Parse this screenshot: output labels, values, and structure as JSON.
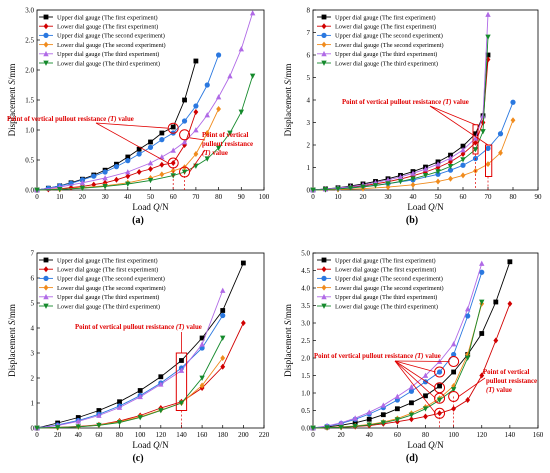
{
  "legend_labels": [
    "Upper dial gauge (The first experiment)",
    "Lower dial gauge (The first experiment)",
    "Upper dial gauge (The second experiment)",
    "Lower dial gauge (The second experiment)",
    "Upper dial gauge (The third experiment)",
    "Lower dial gauge (The third experiment)"
  ],
  "series_colors": [
    "#000000",
    "#d10000",
    "#2a78e0",
    "#f08b1d",
    "#b06ae6",
    "#158a2c"
  ],
  "series_markers": [
    "square",
    "diamond",
    "circle",
    "diamond",
    "triangle",
    "triangle-down"
  ],
  "annotation_color": "#e00000",
  "chart_data": [
    {
      "type": "line",
      "panel_label": "(a)",
      "xlabel": "Load Q/N",
      "ylabel": "Displacement S/mm",
      "xlim": [
        0,
        100
      ],
      "ylim": [
        0,
        3.0
      ],
      "xticks": [
        "0",
        "10",
        "20",
        "30",
        "40",
        "50",
        "60",
        "70",
        "80",
        "90",
        "100"
      ],
      "yticks": [
        "0.0",
        "0.5",
        "1.0",
        "1.5",
        "2.0",
        "2.5",
        "3.0"
      ],
      "annotations": [
        "Point of vertical pullout resistance (T) value",
        "Point of vertical pullout resistance (T) value"
      ],
      "series": [
        {
          "x": [
            0,
            5,
            10,
            15,
            20,
            25,
            30,
            35,
            40,
            45,
            50,
            55,
            60,
            65,
            70
          ],
          "y": [
            0,
            0.03,
            0.07,
            0.12,
            0.18,
            0.25,
            0.33,
            0.43,
            0.55,
            0.68,
            0.8,
            0.95,
            1.05,
            1.5,
            2.15
          ]
        },
        {
          "x": [
            0,
            5,
            10,
            15,
            20,
            25,
            30,
            35,
            40,
            45,
            50,
            55,
            60,
            65,
            70
          ],
          "y": [
            0,
            0.01,
            0.02,
            0.04,
            0.06,
            0.09,
            0.12,
            0.17,
            0.23,
            0.3,
            0.35,
            0.42,
            0.45,
            0.75,
            1.3
          ]
        },
        {
          "x": [
            0,
            5,
            10,
            15,
            20,
            25,
            30,
            35,
            40,
            45,
            50,
            55,
            60,
            65,
            70,
            75,
            80
          ],
          "y": [
            0,
            0.03,
            0.07,
            0.11,
            0.17,
            0.23,
            0.3,
            0.39,
            0.49,
            0.6,
            0.71,
            0.84,
            0.95,
            1.15,
            1.4,
            1.75,
            2.25
          ]
        },
        {
          "x": [
            0,
            10,
            20,
            30,
            40,
            50,
            55,
            60,
            65,
            70,
            75,
            80
          ],
          "y": [
            0,
            0.01,
            0.04,
            0.07,
            0.12,
            0.2,
            0.26,
            0.32,
            0.38,
            0.6,
            0.95,
            1.35
          ]
        },
        {
          "x": [
            0,
            10,
            20,
            30,
            40,
            50,
            55,
            60,
            65,
            70,
            75,
            80,
            85,
            90,
            95
          ],
          "y": [
            0,
            0.05,
            0.12,
            0.2,
            0.3,
            0.45,
            0.55,
            0.66,
            0.8,
            1.0,
            1.25,
            1.55,
            1.9,
            2.35,
            2.95
          ]
        },
        {
          "x": [
            0,
            10,
            20,
            30,
            40,
            50,
            60,
            65,
            70,
            75,
            80,
            85,
            90,
            95
          ],
          "y": [
            0,
            0.01,
            0.03,
            0.06,
            0.1,
            0.16,
            0.24,
            0.3,
            0.4,
            0.52,
            0.7,
            0.95,
            1.3,
            1.9
          ]
        }
      ]
    },
    {
      "type": "line",
      "panel_label": "(b)",
      "xlabel": "Load Q/N",
      "ylabel": "Displacement S/mm",
      "xlim": [
        0,
        90
      ],
      "ylim": [
        0,
        8
      ],
      "xticks": [
        "0",
        "10",
        "20",
        "30",
        "40",
        "50",
        "60",
        "70",
        "80",
        "90"
      ],
      "yticks": [
        "0",
        "1",
        "2",
        "3",
        "4",
        "5",
        "6",
        "7",
        "8"
      ],
      "annotations": [
        "Point of vertical pullout resistance (T) value"
      ],
      "series": [
        {
          "x": [
            0,
            5,
            10,
            15,
            20,
            25,
            30,
            35,
            40,
            45,
            50,
            55,
            60,
            65,
            68,
            70
          ],
          "y": [
            0,
            0.05,
            0.1,
            0.18,
            0.27,
            0.38,
            0.5,
            0.65,
            0.82,
            1.02,
            1.25,
            1.55,
            1.95,
            2.5,
            3.3,
            6.0
          ]
        },
        {
          "x": [
            0,
            5,
            10,
            15,
            20,
            25,
            30,
            35,
            40,
            45,
            50,
            55,
            60,
            65,
            68,
            70
          ],
          "y": [
            0,
            0.03,
            0.07,
            0.12,
            0.19,
            0.27,
            0.37,
            0.49,
            0.63,
            0.8,
            1.0,
            1.25,
            1.6,
            2.1,
            3.0,
            5.8
          ]
        },
        {
          "x": [
            0,
            10,
            20,
            30,
            40,
            50,
            55,
            60,
            65,
            70,
            75,
            80
          ],
          "y": [
            0,
            0.06,
            0.15,
            0.28,
            0.45,
            0.7,
            0.88,
            1.1,
            1.4,
            1.85,
            2.5,
            3.9
          ]
        },
        {
          "x": [
            0,
            10,
            20,
            30,
            40,
            50,
            55,
            60,
            65,
            70,
            75,
            80
          ],
          "y": [
            0,
            0.02,
            0.06,
            0.13,
            0.23,
            0.38,
            0.5,
            0.65,
            0.85,
            1.15,
            1.65,
            3.1
          ]
        },
        {
          "x": [
            0,
            5,
            10,
            15,
            20,
            25,
            30,
            35,
            40,
            45,
            50,
            55,
            60,
            65,
            68,
            70
          ],
          "y": [
            0,
            0.04,
            0.09,
            0.15,
            0.23,
            0.33,
            0.45,
            0.58,
            0.74,
            0.93,
            1.15,
            1.42,
            1.78,
            2.3,
            3.3,
            7.8
          ]
        },
        {
          "x": [
            0,
            5,
            10,
            15,
            20,
            25,
            30,
            35,
            40,
            45,
            50,
            55,
            60,
            65,
            68,
            70
          ],
          "y": [
            0,
            0.02,
            0.05,
            0.09,
            0.14,
            0.2,
            0.28,
            0.38,
            0.5,
            0.65,
            0.82,
            1.05,
            1.35,
            1.8,
            2.6,
            6.8
          ]
        }
      ]
    },
    {
      "type": "line",
      "panel_label": "(c)",
      "xlabel": "Load Q/N",
      "ylabel": "Displacement S/mm",
      "xlim": [
        0,
        220
      ],
      "ylim": [
        0,
        7
      ],
      "xticks": [
        "0",
        "20",
        "40",
        "60",
        "80",
        "100",
        "120",
        "140",
        "160",
        "180",
        "200",
        "220"
      ],
      "yticks": [
        "0",
        "1",
        "2",
        "3",
        "4",
        "5",
        "6",
        "7"
      ],
      "annotations": [
        "Point of vertical pullout resistance (T) value"
      ],
      "series": [
        {
          "x": [
            0,
            20,
            40,
            60,
            80,
            100,
            120,
            140,
            160,
            180,
            200
          ],
          "y": [
            0,
            0.2,
            0.42,
            0.7,
            1.05,
            1.5,
            2.05,
            2.7,
            3.6,
            4.7,
            6.6
          ]
        },
        {
          "x": [
            0,
            20,
            40,
            60,
            80,
            100,
            120,
            140,
            160,
            180,
            200
          ],
          "y": [
            0,
            0.02,
            0.06,
            0.13,
            0.28,
            0.5,
            0.8,
            1.05,
            1.6,
            2.45,
            4.2
          ]
        },
        {
          "x": [
            0,
            20,
            40,
            60,
            80,
            100,
            120,
            140,
            160,
            180
          ],
          "y": [
            0,
            0.12,
            0.3,
            0.55,
            0.88,
            1.3,
            1.8,
            2.4,
            3.2,
            4.5
          ]
        },
        {
          "x": [
            0,
            20,
            40,
            60,
            80,
            100,
            120,
            140,
            160,
            180
          ],
          "y": [
            0,
            0.02,
            0.05,
            0.12,
            0.25,
            0.45,
            0.72,
            1.0,
            1.7,
            2.8
          ]
        },
        {
          "x": [
            0,
            20,
            40,
            60,
            80,
            100,
            120,
            140,
            160,
            180
          ],
          "y": [
            0,
            0.1,
            0.27,
            0.5,
            0.82,
            1.25,
            1.75,
            2.3,
            3.35,
            5.5
          ]
        },
        {
          "x": [
            0,
            20,
            40,
            60,
            80,
            100,
            120,
            140,
            160,
            180
          ],
          "y": [
            0,
            0.02,
            0.05,
            0.11,
            0.22,
            0.42,
            0.7,
            1.0,
            2.0,
            3.6
          ]
        }
      ]
    },
    {
      "type": "line",
      "panel_label": "(d)",
      "xlabel": "Load Q/N",
      "ylabel": "Displacement S/mm",
      "xlim": [
        0,
        160
      ],
      "ylim": [
        0,
        5.0
      ],
      "xticks": [
        "0",
        "20",
        "40",
        "60",
        "80",
        "100",
        "120",
        "140",
        "160"
      ],
      "yticks": [
        "0.0",
        "0.5",
        "1.0",
        "1.5",
        "2.0",
        "2.5",
        "3.0",
        "3.5",
        "4.0",
        "4.5",
        "5.0"
      ],
      "annotations": [
        "Point of vertical pullout resistance (T) value",
        "Point of vertical pullout resistance (T) value"
      ],
      "series": [
        {
          "x": [
            0,
            10,
            20,
            30,
            40,
            50,
            60,
            70,
            80,
            90,
            100,
            110,
            120,
            130,
            140
          ],
          "y": [
            0,
            0.03,
            0.08,
            0.15,
            0.25,
            0.38,
            0.55,
            0.72,
            0.92,
            1.2,
            1.6,
            2.1,
            2.7,
            3.6,
            4.75
          ]
        },
        {
          "x": [
            0,
            10,
            20,
            30,
            40,
            50,
            60,
            70,
            80,
            90,
            100,
            110,
            120,
            130,
            140
          ],
          "y": [
            0,
            0.01,
            0.02,
            0.04,
            0.07,
            0.12,
            0.18,
            0.25,
            0.33,
            0.42,
            0.55,
            0.8,
            1.5,
            2.5,
            3.55
          ]
        },
        {
          "x": [
            0,
            10,
            20,
            30,
            40,
            50,
            60,
            70,
            80,
            90,
            100,
            110,
            120
          ],
          "y": [
            0,
            0.05,
            0.13,
            0.25,
            0.4,
            0.58,
            0.8,
            1.05,
            1.32,
            1.6,
            2.1,
            3.2,
            4.45
          ]
        },
        {
          "x": [
            0,
            10,
            20,
            30,
            40,
            50,
            60,
            70,
            80,
            90,
            100,
            110,
            120
          ],
          "y": [
            0,
            0.01,
            0.03,
            0.06,
            0.1,
            0.17,
            0.27,
            0.42,
            0.6,
            0.85,
            1.2,
            2.1,
            3.55
          ]
        },
        {
          "x": [
            0,
            10,
            20,
            30,
            40,
            50,
            60,
            70,
            80,
            90,
            100,
            110,
            120
          ],
          "y": [
            0,
            0.06,
            0.15,
            0.28,
            0.45,
            0.65,
            0.9,
            1.17,
            1.5,
            1.9,
            2.4,
            3.4,
            4.7
          ]
        },
        {
          "x": [
            0,
            10,
            20,
            30,
            40,
            50,
            60,
            70,
            80,
            90,
            100,
            110,
            120
          ],
          "y": [
            0,
            0.01,
            0.02,
            0.05,
            0.09,
            0.15,
            0.24,
            0.37,
            0.55,
            0.8,
            1.1,
            2.0,
            3.6
          ]
        }
      ]
    }
  ]
}
